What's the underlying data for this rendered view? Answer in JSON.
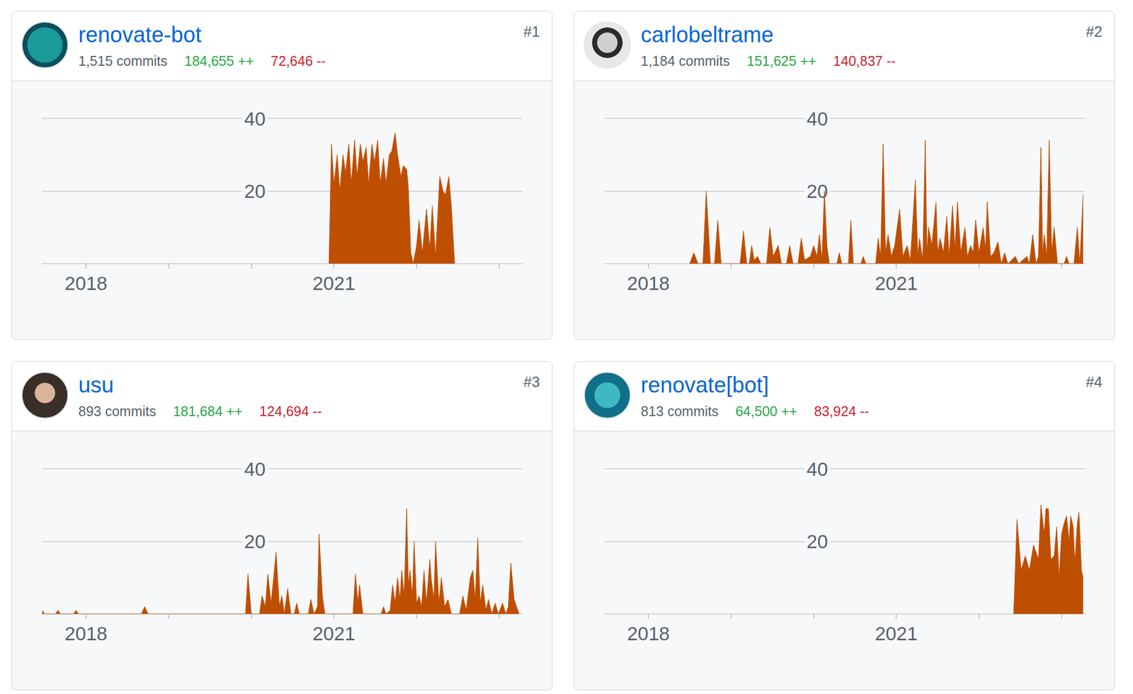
{
  "chart_data": [
    {
      "type": "area",
      "title": "renovate-bot",
      "rank": "#1",
      "commits": "1,515 commits",
      "additions": "184,655 ++",
      "deletions": "72,646 --",
      "color": "#bf4f00",
      "x": [
        2020.94,
        2020.97,
        2021.0,
        2021.04,
        2021.07,
        2021.11,
        2021.14,
        2021.18,
        2021.21,
        2021.25,
        2021.28,
        2021.32,
        2021.35,
        2021.39,
        2021.42,
        2021.46,
        2021.49,
        2021.53,
        2021.56,
        2021.6,
        2021.63,
        2021.67,
        2021.7,
        2021.74,
        2021.77,
        2021.81,
        2021.84,
        2021.88,
        2021.9,
        2021.93,
        2021.96,
        2022.0,
        2022.03,
        2022.07,
        2022.12,
        2022.16,
        2022.19,
        2022.23,
        2022.28,
        2022.32,
        2022.35,
        2022.39,
        2022.42,
        2022.46
      ],
      "values": [
        0,
        33,
        22,
        30,
        20,
        30,
        25,
        33,
        22,
        34,
        24,
        33,
        28,
        32,
        22,
        33,
        28,
        34,
        22,
        29,
        22,
        30,
        31,
        36,
        30,
        24,
        27,
        26,
        21,
        3,
        0,
        5,
        12,
        3,
        15,
        4,
        16,
        2,
        24,
        20,
        19,
        24,
        16,
        0
      ],
      "xlim": [
        2017.47,
        2023.28
      ],
      "xticks": [
        2018,
        {
          "value": 2019,
          "label": null
        },
        {
          "value": 2020,
          "label": null
        },
        2021,
        {
          "value": 2022,
          "label": null
        },
        {
          "value": 2023,
          "label": null
        }
      ],
      "ylim": [
        0,
        40
      ],
      "yticks": [
        {
          "value": 0,
          "label": null
        },
        20,
        40
      ],
      "grid": true
    },
    {
      "type": "area",
      "title": "carlobeltrame",
      "rank": "#2",
      "commits": "1,184 commits",
      "additions": "151,625 ++",
      "deletions": "140,837 --",
      "color": "#bf4f00",
      "x": [
        2018.5,
        2018.55,
        2018.6,
        2018.66,
        2018.7,
        2018.75,
        2018.8,
        2018.84,
        2018.88,
        2019.11,
        2019.15,
        2019.19,
        2019.22,
        2019.25,
        2019.28,
        2019.32,
        2019.36,
        2019.43,
        2019.47,
        2019.51,
        2019.57,
        2019.61,
        2019.67,
        2019.71,
        2019.75,
        2019.81,
        2019.85,
        2019.89,
        2019.96,
        2020.0,
        2020.04,
        2020.07,
        2020.1,
        2020.13,
        2020.16,
        2020.19,
        2020.28,
        2020.31,
        2020.34,
        2020.42,
        2020.45,
        2020.48,
        2020.57,
        2020.6,
        2020.63,
        2020.75,
        2020.78,
        2020.81,
        2020.84,
        2020.87,
        2020.9,
        2020.94,
        2020.98,
        2021.04,
        2021.08,
        2021.13,
        2021.17,
        2021.23,
        2021.26,
        2021.28,
        2021.32,
        2021.35,
        2021.37,
        2021.39,
        2021.43,
        2021.48,
        2021.5,
        2021.53,
        2021.57,
        2021.61,
        2021.64,
        2021.68,
        2021.71,
        2021.74,
        2021.78,
        2021.83,
        2021.86,
        2021.9,
        2021.93,
        2021.96,
        2022.0,
        2022.05,
        2022.08,
        2022.1,
        2022.14,
        2022.18,
        2022.23,
        2022.27,
        2022.31,
        2022.35,
        2022.44,
        2022.48,
        2022.58,
        2022.61,
        2022.65,
        2022.69,
        2022.72,
        2022.75,
        2022.77,
        2022.79,
        2022.82,
        2022.85,
        2022.88,
        2022.91,
        2022.95,
        2023.03,
        2023.06,
        2023.09,
        2023.15,
        2023.19,
        2023.22,
        2023.26
      ],
      "values": [
        0,
        3,
        0,
        0,
        20,
        0,
        0,
        12,
        0,
        0,
        9,
        0,
        0,
        5,
        1,
        2,
        0,
        0,
        10,
        2,
        5,
        0,
        0,
        5,
        0,
        0,
        7,
        1,
        2,
        5,
        2,
        8,
        1,
        20,
        5,
        0,
        0,
        3,
        0,
        0,
        12,
        0,
        0,
        2,
        0,
        0,
        7,
        2,
        33,
        3,
        8,
        2,
        5,
        15,
        2,
        5,
        1,
        23,
        2,
        7,
        1,
        34,
        3,
        10,
        5,
        17,
        3,
        7,
        3,
        13,
        2,
        16,
        4,
        17,
        3,
        10,
        2,
        5,
        3,
        12,
        3,
        10,
        4,
        17,
        2,
        3,
        6,
        0,
        3,
        0,
        2,
        0,
        2,
        0,
        8,
        0,
        2,
        32,
        3,
        8,
        2,
        34,
        3,
        10,
        0,
        0,
        2,
        0,
        0,
        10,
        0,
        19
      ],
      "xlim": [
        2017.47,
        2023.28
      ],
      "xticks": [
        2018,
        {
          "value": 2019,
          "label": null
        },
        {
          "value": 2020,
          "label": null
        },
        2021,
        {
          "value": 2022,
          "label": null
        },
        {
          "value": 2023,
          "label": null
        }
      ],
      "ylim": [
        0,
        40
      ],
      "yticks": [
        {
          "value": 0,
          "label": null
        },
        20,
        40
      ],
      "grid": true
    },
    {
      "type": "area",
      "title": "usu",
      "rank": "#3",
      "commits": "893 commits",
      "additions": "181,684 ++",
      "deletions": "124,694 --",
      "color": "#bf4f00",
      "x": [
        2017.47,
        2017.5,
        2017.63,
        2017.66,
        2017.69,
        2017.85,
        2017.88,
        2017.91,
        2018.67,
        2018.71,
        2018.75,
        2019.93,
        2019.96,
        2020.0,
        2020.1,
        2020.13,
        2020.17,
        2020.2,
        2020.24,
        2020.3,
        2020.34,
        2020.37,
        2020.4,
        2020.44,
        2020.48,
        2020.52,
        2020.55,
        2020.58,
        2020.69,
        2020.72,
        2020.76,
        2020.8,
        2020.82,
        2020.86,
        2020.89,
        2021.23,
        2021.26,
        2021.29,
        2021.31,
        2021.35,
        2021.57,
        2021.6,
        2021.63,
        2021.68,
        2021.71,
        2021.74,
        2021.77,
        2021.8,
        2021.82,
        2021.85,
        2021.88,
        2021.9,
        2021.92,
        2021.95,
        2021.97,
        2022.0,
        2022.03,
        2022.06,
        2022.09,
        2022.12,
        2022.16,
        2022.18,
        2022.21,
        2022.23,
        2022.27,
        2022.3,
        2022.34,
        2022.38,
        2022.42,
        2022.52,
        2022.56,
        2022.6,
        2022.65,
        2022.68,
        2022.71,
        2022.74,
        2022.77,
        2022.8,
        2022.84,
        2022.87,
        2022.91,
        2022.95,
        2022.99,
        2023.04,
        2023.08,
        2023.11,
        2023.14,
        2023.18,
        2023.21,
        2023.24
      ],
      "values": [
        1,
        0,
        0,
        1,
        0,
        0,
        1,
        0,
        0,
        2,
        0,
        0,
        11,
        0,
        0,
        5,
        2,
        11,
        3,
        17,
        2,
        5,
        0,
        7,
        0,
        0,
        3,
        0,
        0,
        4,
        0,
        2,
        22,
        5,
        0,
        0,
        11,
        3,
        8,
        0,
        0,
        2,
        0,
        1,
        8,
        3,
        10,
        4,
        12,
        5,
        29,
        8,
        12,
        5,
        20,
        3,
        5,
        2,
        12,
        3,
        15,
        9,
        4,
        20,
        3,
        10,
        2,
        4,
        0,
        0,
        5,
        1,
        10,
        12,
        4,
        21,
        3,
        8,
        1,
        4,
        0,
        3,
        0,
        3,
        0,
        2,
        14,
        4,
        2,
        0
      ],
      "xlim": [
        2017.47,
        2023.28
      ],
      "xticks": [
        2018,
        {
          "value": 2019,
          "label": null
        },
        {
          "value": 2020,
          "label": null
        },
        2021,
        {
          "value": 2022,
          "label": null
        },
        {
          "value": 2023,
          "label": null
        }
      ],
      "ylim": [
        0,
        40
      ],
      "yticks": [
        {
          "value": 0,
          "label": null
        },
        20,
        40
      ],
      "grid": true
    },
    {
      "type": "area",
      "title": "renovate[bot]",
      "rank": "#4",
      "commits": "813 commits",
      "additions": "64,500 ++",
      "deletions": "83,924 --",
      "color": "#bf4f00",
      "x": [
        2022.42,
        2022.46,
        2022.51,
        2022.56,
        2022.61,
        2022.66,
        2022.72,
        2022.75,
        2022.79,
        2022.81,
        2022.84,
        2022.87,
        2022.91,
        2022.94,
        2022.97,
        2023.0,
        2023.03,
        2023.06,
        2023.09,
        2023.11,
        2023.14,
        2023.16,
        2023.19,
        2023.21,
        2023.24,
        2023.26
      ],
      "values": [
        0,
        26,
        12,
        16,
        12,
        19,
        15,
        30,
        22,
        29,
        29,
        15,
        16,
        24,
        10,
        22,
        25,
        27,
        20,
        27,
        24,
        14,
        25,
        28,
        12,
        10
      ],
      "xlim": [
        2017.47,
        2023.28
      ],
      "xticks": [
        2018,
        {
          "value": 2019,
          "label": null
        },
        {
          "value": 2020,
          "label": null
        },
        2021,
        {
          "value": 2022,
          "label": null
        },
        {
          "value": 2023,
          "label": null
        }
      ],
      "ylim": [
        0,
        40
      ],
      "yticks": [
        {
          "value": 0,
          "label": null
        },
        20,
        40
      ],
      "grid": true
    }
  ]
}
